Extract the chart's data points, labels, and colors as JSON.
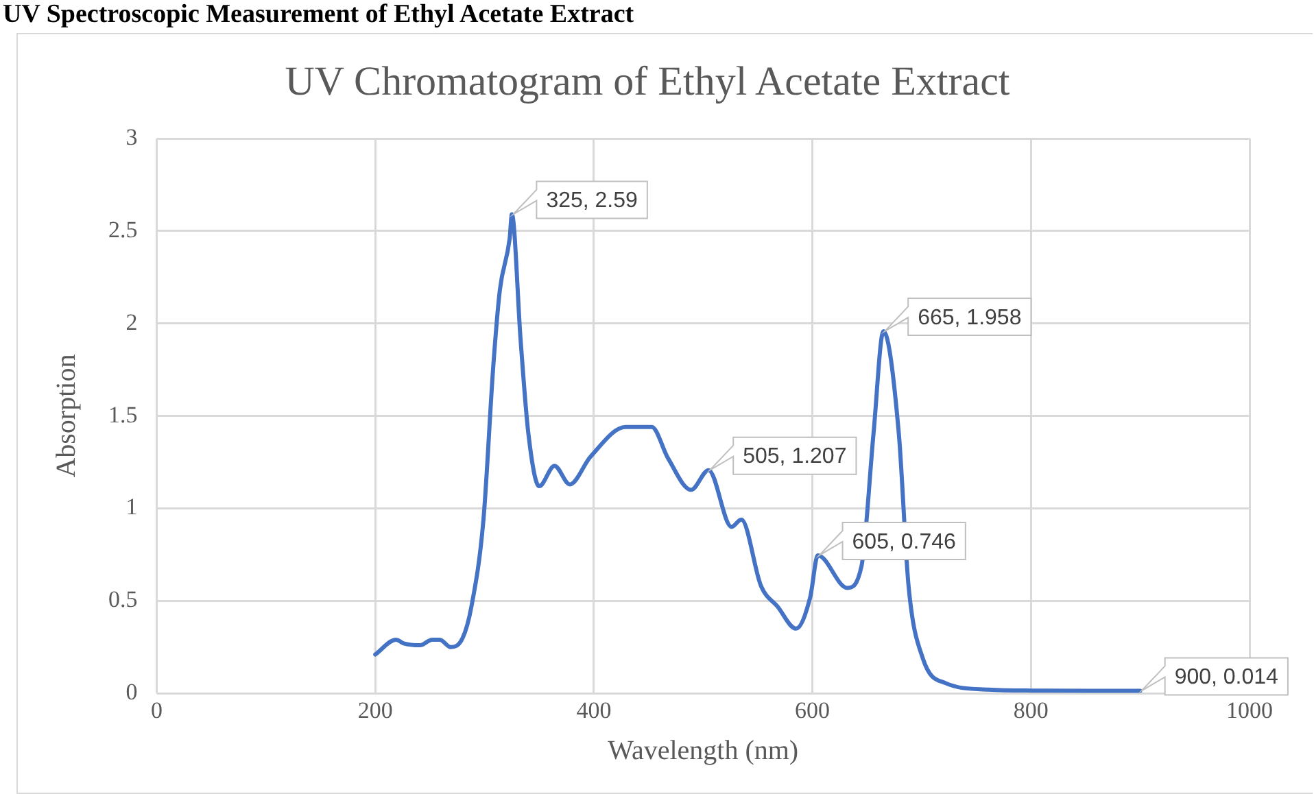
{
  "chart_data": {
    "type": "line",
    "title": "UV Chromatogram of Ethyl Acetate Extract",
    "xlabel": "Wavelength (nm)",
    "ylabel": "Absorption",
    "x": [
      200,
      219,
      226,
      241,
      252,
      259,
      269,
      280,
      288,
      299,
      308,
      314,
      323,
      325,
      333,
      340,
      350,
      364,
      378,
      397,
      429,
      453,
      468,
      489,
      505,
      526,
      535,
      553,
      568,
      585,
      598,
      605,
      632,
      645,
      656,
      665,
      679,
      688,
      701,
      722,
      761,
      800,
      900
    ],
    "series": [
      {
        "color": "#4472c4",
        "values": [
          0.21,
          0.29,
          0.27,
          0.26,
          0.29,
          0.29,
          0.25,
          0.3,
          0.47,
          0.94,
          1.77,
          2.18,
          2.46,
          2.59,
          1.91,
          1.41,
          1.12,
          1.23,
          1.13,
          1.28,
          1.44,
          1.44,
          1.27,
          1.1,
          1.207,
          0.9,
          0.94,
          0.58,
          0.47,
          0.35,
          0.52,
          0.746,
          0.57,
          0.69,
          1.41,
          1.958,
          1.41,
          0.58,
          0.19,
          0.055,
          0.02,
          0.015,
          0.014
        ]
      }
    ],
    "xlim": [
      0,
      1000
    ],
    "xticks": [
      0,
      200,
      400,
      600,
      800,
      1000
    ],
    "ylim": [
      0,
      3
    ],
    "yticks": [
      0,
      0.5,
      1,
      1.5,
      2,
      2.5,
      3
    ],
    "grid": true,
    "marker": "none",
    "line_style": "solid",
    "annotations": [
      "UV Spectroscopic Measurement of Ethyl Acetate Extract",
      {
        "text": "325, 2.59",
        "x": 325,
        "y": 2.59
      },
      {
        "text": "665, 1.958",
        "x": 665,
        "y": 1.958
      },
      {
        "text": "505, 1.207",
        "x": 505,
        "y": 1.207
      },
      {
        "text": "605, 0.746",
        "x": 605,
        "y": 0.746
      },
      {
        "text": "900, 0.014",
        "x": 900,
        "y": 0.014
      }
    ]
  }
}
